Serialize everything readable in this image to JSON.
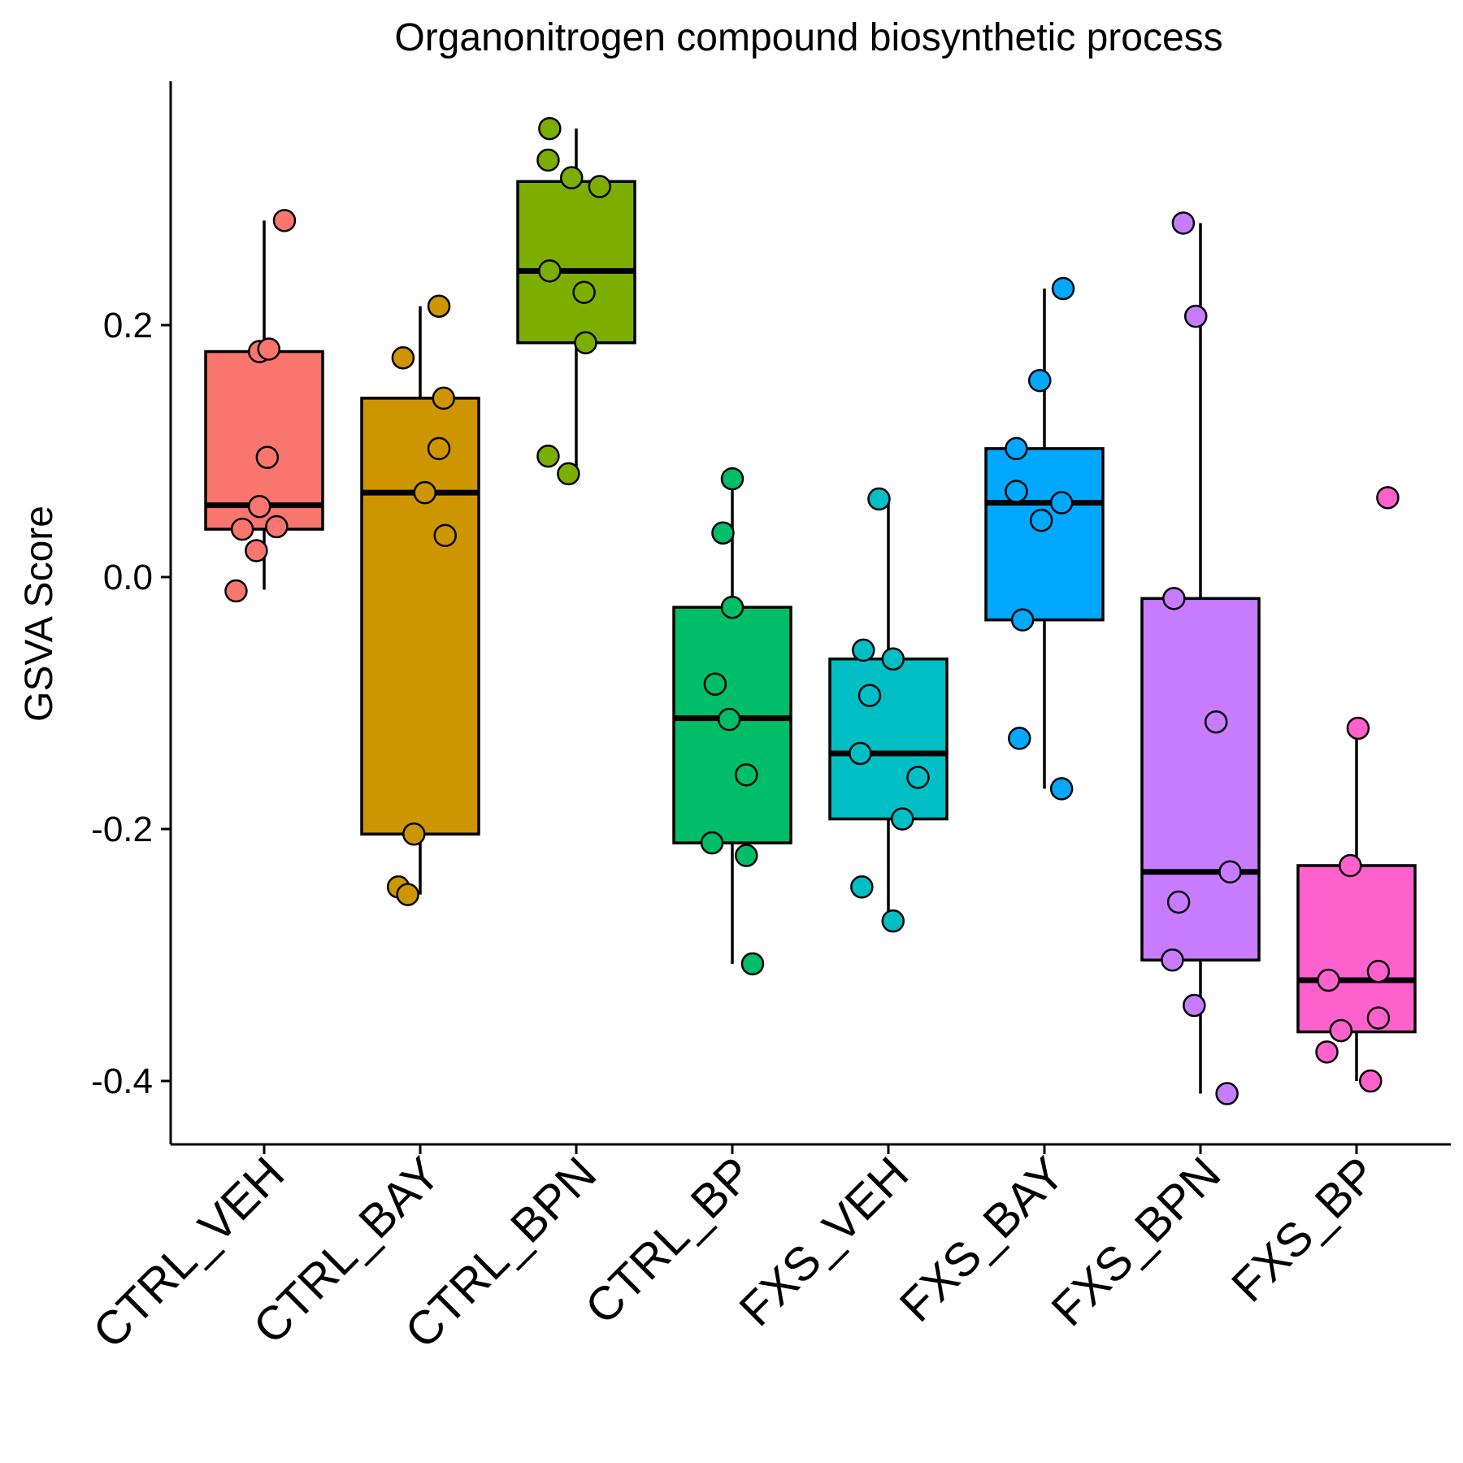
{
  "chart_data": {
    "type": "box",
    "title": "Organonitrogen compound biosynthetic process",
    "xlabel": "",
    "ylabel": "GSVA Score",
    "ylim": [
      -0.45,
      0.39
    ],
    "yticks": [
      0.2,
      0.0,
      -0.2,
      -0.4
    ],
    "ytick_labels": [
      "0.2",
      "0.0",
      "-0.2",
      "-0.4"
    ],
    "grid": false,
    "legend": "none",
    "categories": [
      "CTRL_VEH",
      "CTRL_BAY",
      "CTRL_BPN",
      "CTRL_BP",
      "FXS_VEH",
      "FXS_BAY",
      "FXS_BPN",
      "FXS_BP"
    ],
    "colors": [
      "#F8766D",
      "#CD9600",
      "#7CAE00",
      "#00BE67",
      "#00BFC4",
      "#00A9FF",
      "#C77CFF",
      "#FF61CC"
    ],
    "boxes": [
      {
        "whisker_low": -0.01,
        "q1": 0.038,
        "median": 0.057,
        "q3": 0.179,
        "whisker_high": 0.283
      },
      {
        "whisker_low": -0.252,
        "q1": -0.204,
        "median": 0.067,
        "q3": 0.142,
        "whisker_high": 0.215
      },
      {
        "whisker_low": 0.082,
        "q1": 0.186,
        "median": 0.243,
        "q3": 0.314,
        "whisker_high": 0.356
      },
      {
        "whisker_low": -0.307,
        "q1": -0.211,
        "median": -0.112,
        "q3": -0.024,
        "whisker_high": 0.078
      },
      {
        "whisker_low": -0.273,
        "q1": -0.192,
        "median": -0.14,
        "q3": -0.065,
        "whisker_high": 0.062
      },
      {
        "whisker_low": -0.168,
        "q1": -0.034,
        "median": 0.059,
        "q3": 0.102,
        "whisker_high": 0.229
      },
      {
        "whisker_low": -0.41,
        "q1": -0.304,
        "median": -0.234,
        "q3": -0.017,
        "whisker_high": 0.281
      },
      {
        "whisker_low": -0.4,
        "q1": -0.361,
        "median": -0.32,
        "q3": -0.229,
        "whisker_high": -0.12
      }
    ],
    "points": [
      [
        {
          "x": 1.13,
          "y": 0.283
        },
        {
          "x": 0.97,
          "y": 0.179
        },
        {
          "x": 1.03,
          "y": 0.181
        },
        {
          "x": 1.02,
          "y": 0.095
        },
        {
          "x": 0.97,
          "y": 0.056
        },
        {
          "x": 0.86,
          "y": 0.038
        },
        {
          "x": 1.08,
          "y": 0.04
        },
        {
          "x": 0.95,
          "y": 0.021
        },
        {
          "x": 0.82,
          "y": -0.011
        }
      ],
      [
        {
          "x": 2.12,
          "y": 0.215
        },
        {
          "x": 1.89,
          "y": 0.174
        },
        {
          "x": 2.15,
          "y": 0.142
        },
        {
          "x": 2.12,
          "y": 0.102
        },
        {
          "x": 2.03,
          "y": 0.067
        },
        {
          "x": 2.16,
          "y": 0.033
        },
        {
          "x": 1.96,
          "y": -0.204
        },
        {
          "x": 1.86,
          "y": -0.246
        },
        {
          "x": 1.92,
          "y": -0.252
        }
      ],
      [
        {
          "x": 2.83,
          "y": 0.356
        },
        {
          "x": 2.82,
          "y": 0.331
        },
        {
          "x": 2.97,
          "y": 0.317
        },
        {
          "x": 3.15,
          "y": 0.31
        },
        {
          "x": 2.83,
          "y": 0.243
        },
        {
          "x": 3.05,
          "y": 0.226
        },
        {
          "x": 3.06,
          "y": 0.186
        },
        {
          "x": 2.82,
          "y": 0.096
        },
        {
          "x": 2.95,
          "y": 0.082
        }
      ],
      [
        {
          "x": 4.0,
          "y": 0.078
        },
        {
          "x": 3.94,
          "y": 0.035
        },
        {
          "x": 4.0,
          "y": -0.024
        },
        {
          "x": 3.89,
          "y": -0.085
        },
        {
          "x": 3.98,
          "y": -0.113
        },
        {
          "x": 4.09,
          "y": -0.157
        },
        {
          "x": 3.87,
          "y": -0.211
        },
        {
          "x": 4.09,
          "y": -0.221
        },
        {
          "x": 4.13,
          "y": -0.307
        }
      ],
      [
        {
          "x": 4.94,
          "y": 0.062
        },
        {
          "x": 4.84,
          "y": -0.058
        },
        {
          "x": 5.03,
          "y": -0.065
        },
        {
          "x": 4.88,
          "y": -0.094
        },
        {
          "x": 4.82,
          "y": -0.14
        },
        {
          "x": 5.19,
          "y": -0.159
        },
        {
          "x": 5.09,
          "y": -0.192
        },
        {
          "x": 4.83,
          "y": -0.246
        },
        {
          "x": 5.03,
          "y": -0.273
        }
      ],
      [
        {
          "x": 6.12,
          "y": 0.229
        },
        {
          "x": 5.97,
          "y": 0.156
        },
        {
          "x": 5.82,
          "y": 0.102
        },
        {
          "x": 5.82,
          "y": 0.068
        },
        {
          "x": 6.11,
          "y": 0.059
        },
        {
          "x": 5.98,
          "y": 0.045
        },
        {
          "x": 5.86,
          "y": -0.034
        },
        {
          "x": 5.84,
          "y": -0.128
        },
        {
          "x": 6.11,
          "y": -0.168
        }
      ],
      [
        {
          "x": 6.89,
          "y": 0.281
        },
        {
          "x": 6.97,
          "y": 0.207
        },
        {
          "x": 6.83,
          "y": -0.017
        },
        {
          "x": 7.1,
          "y": -0.115
        },
        {
          "x": 7.19,
          "y": -0.234
        },
        {
          "x": 6.86,
          "y": -0.258
        },
        {
          "x": 6.82,
          "y": -0.304
        },
        {
          "x": 6.96,
          "y": -0.34
        },
        {
          "x": 7.17,
          "y": -0.41
        }
      ],
      [
        {
          "x": 8.2,
          "y": 0.063
        },
        {
          "x": 8.01,
          "y": -0.12
        },
        {
          "x": 7.96,
          "y": -0.229
        },
        {
          "x": 8.14,
          "y": -0.313
        },
        {
          "x": 7.82,
          "y": -0.32
        },
        {
          "x": 8.14,
          "y": -0.35
        },
        {
          "x": 7.9,
          "y": -0.36
        },
        {
          "x": 7.81,
          "y": -0.377
        },
        {
          "x": 8.09,
          "y": -0.4
        }
      ]
    ]
  }
}
